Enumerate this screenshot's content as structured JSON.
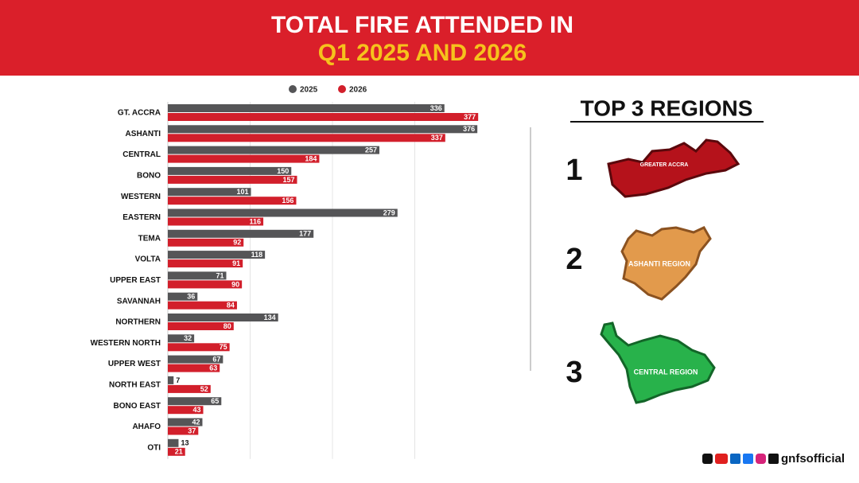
{
  "chart_data": {
    "type": "bar",
    "orientation": "horizontal",
    "title": "TOTAL FIRE ATTENDED IN",
    "subtitle": "Q1 2025 AND 2026",
    "categories": [
      "GT. ACCRA",
      "ASHANTI",
      "CENTRAL",
      "BONO",
      "WESTERN",
      "EASTERN",
      "TEMA",
      "VOLTA",
      "UPPER EAST",
      "SAVANNAH",
      "NORTHERN",
      "WESTERN NORTH",
      "UPPER WEST",
      "NORTH EAST",
      "BONO EAST",
      "AHAFO",
      "OTI"
    ],
    "series": [
      {
        "name": "2025",
        "color": "#555557",
        "values": [
          336,
          376,
          257,
          150,
          101,
          279,
          177,
          118,
          71,
          36,
          134,
          32,
          67,
          7,
          65,
          42,
          13
        ]
      },
      {
        "name": "2026",
        "color": "#d21f2b",
        "values": [
          377,
          337,
          184,
          157,
          156,
          116,
          92,
          91,
          90,
          84,
          80,
          75,
          63,
          52,
          43,
          37,
          21
        ]
      }
    ],
    "xlim": [
      0,
      400
    ],
    "xticks": [
      100,
      200,
      300
    ],
    "grid": true,
    "legend": "top"
  },
  "panel": {
    "title": "TOP 3 REGIONS",
    "regions": [
      {
        "rank": "1",
        "label": "GREATER ACCRA"
      },
      {
        "rank": "2",
        "label": "ASHANTI REGION"
      },
      {
        "rank": "3",
        "label": "CENTRAL REGION"
      }
    ]
  },
  "footer": {
    "handle": "gnfsofficial"
  }
}
